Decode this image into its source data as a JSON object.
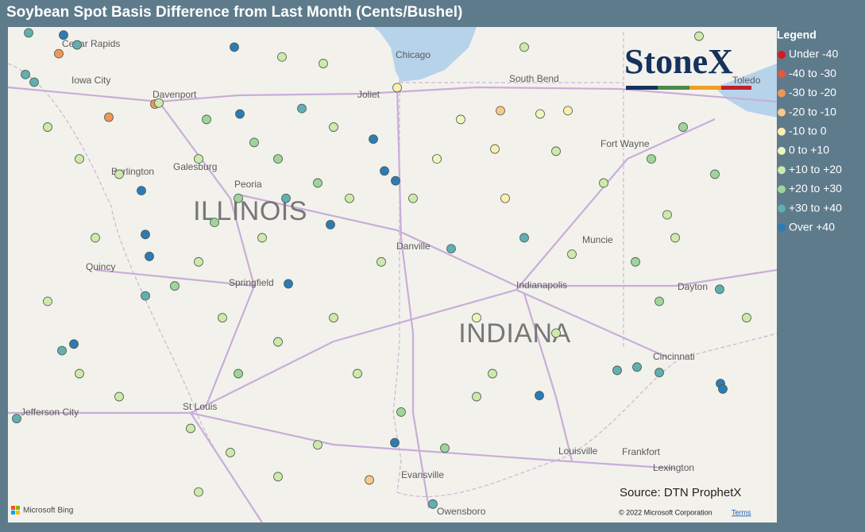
{
  "header": {
    "title": "Soybean Spot Basis Difference from Last Month (Cents/Bushel)"
  },
  "logo": "StoneX",
  "source": "Source: DTN ProphetX",
  "attribution": {
    "provider": "Microsoft Bing",
    "copyright": "© 2022 Microsoft Corporation",
    "terms": "Terms"
  },
  "states": [
    "ILLINOIS",
    "INDIANA"
  ],
  "cities": [
    "Cedar Rapids",
    "Iowa City",
    "Davenport",
    "Galesburg",
    "Burlington",
    "Peoria",
    "Quincy",
    "Springfield",
    "Chicago",
    "Joliet",
    "South Bend",
    "Fort Wayne",
    "Toledo",
    "Danville",
    "Muncie",
    "Indianapolis",
    "Dayton",
    "Cincinnati",
    "Louisville",
    "Frankfort",
    "Lexington",
    "Evansville",
    "Owensboro",
    "St Louis",
    "Jefferson City"
  ],
  "legend": {
    "title": "Legend",
    "items": [
      {
        "label": "Under -40",
        "color": "#d7191c"
      },
      {
        "label": "-40 to -30",
        "color": "#e8553a"
      },
      {
        "label": "-30 to -20",
        "color": "#f0965a"
      },
      {
        "label": "-20 to -10",
        "color": "#f7c98a"
      },
      {
        "label": "-10 to 0",
        "color": "#fbeeb0"
      },
      {
        "label": "0 to +10",
        "color": "#eef6c0"
      },
      {
        "label": "+10 to +20",
        "color": "#cfe9ad"
      },
      {
        "label": "+20 to +30",
        "color": "#9fd49c"
      },
      {
        "label": "+30 to +40",
        "color": "#62aeb0"
      },
      {
        "label": "Over +40",
        "color": "#2c7bb6"
      }
    ]
  },
  "points": [
    {
      "lon": -92.37,
      "lat": 42.09,
      "class": 8
    },
    {
      "lon": -91.93,
      "lat": 42.07,
      "class": 9
    },
    {
      "lon": -91.76,
      "lat": 41.98,
      "class": 8
    },
    {
      "lon": -91.99,
      "lat": 41.9,
      "class": 2
    },
    {
      "lon": -92.41,
      "lat": 41.71,
      "class": 8
    },
    {
      "lon": -92.3,
      "lat": 41.64,
      "class": 8
    },
    {
      "lon": -90.78,
      "lat": 41.44,
      "class": 2
    },
    {
      "lon": -91.36,
      "lat": 41.32,
      "class": 2
    },
    {
      "lon": -89.78,
      "lat": 41.96,
      "class": 9
    },
    {
      "lon": -89.18,
      "lat": 41.87,
      "class": 6
    },
    {
      "lon": -88.66,
      "lat": 41.81,
      "class": 6
    },
    {
      "lon": -87.73,
      "lat": 41.59,
      "class": 4
    },
    {
      "lon": -86.43,
      "lat": 41.38,
      "class": 3
    },
    {
      "lon": -85.93,
      "lat": 41.35,
      "class": 5
    },
    {
      "lon": -85.58,
      "lat": 41.38,
      "class": 4
    },
    {
      "lon": -86.5,
      "lat": 41.03,
      "class": 4
    },
    {
      "lon": -86.37,
      "lat": 40.58,
      "class": 4
    },
    {
      "lon": -88.93,
      "lat": 41.4,
      "class": 8
    },
    {
      "lon": -89.71,
      "lat": 41.35,
      "class": 9
    },
    {
      "lon": -88.03,
      "lat": 41.12,
      "class": 9
    },
    {
      "lon": -87.89,
      "lat": 40.83,
      "class": 9
    },
    {
      "lon": -87.75,
      "lat": 40.74,
      "class": 9
    },
    {
      "lon": -88.57,
      "lat": 40.34,
      "class": 9
    },
    {
      "lon": -90.95,
      "lat": 40.65,
      "class": 9
    },
    {
      "lon": -90.9,
      "lat": 40.25,
      "class": 9
    },
    {
      "lon": -90.85,
      "lat": 40.05,
      "class": 9
    },
    {
      "lon": -89.1,
      "lat": 39.8,
      "class": 9
    },
    {
      "lon": -90.9,
      "lat": 39.69,
      "class": 8
    },
    {
      "lon": -86.13,
      "lat": 40.22,
      "class": 8
    },
    {
      "lon": -87.05,
      "lat": 40.12,
      "class": 8
    },
    {
      "lon": -91.95,
      "lat": 39.19,
      "class": 8
    },
    {
      "lon": -91.8,
      "lat": 39.25,
      "class": 9
    },
    {
      "lon": -85.94,
      "lat": 38.78,
      "class": 9
    },
    {
      "lon": -87.76,
      "lat": 38.35,
      "class": 9
    },
    {
      "lon": -83.66,
      "lat": 38.89,
      "class": 9
    },
    {
      "lon": -83.63,
      "lat": 38.84,
      "class": 9
    },
    {
      "lon": -83.67,
      "lat": 39.75,
      "class": 8
    },
    {
      "lon": -84.96,
      "lat": 39.01,
      "class": 8
    },
    {
      "lon": -84.43,
      "lat": 38.99,
      "class": 8
    },
    {
      "lon": -84.71,
      "lat": 39.04,
      "class": 8
    },
    {
      "lon": -92.52,
      "lat": 38.57,
      "class": 8
    },
    {
      "lon": -88.08,
      "lat": 38.01,
      "class": 3
    },
    {
      "lon": -87.28,
      "lat": 37.79,
      "class": 8
    },
    {
      "lon": -87.68,
      "lat": 38.63,
      "class": 7
    },
    {
      "lon": -87.13,
      "lat": 38.3,
      "class": 7
    },
    {
      "lon": -92.13,
      "lat": 41.23,
      "class": 6
    },
    {
      "lon": -91.73,
      "lat": 40.94,
      "class": 6
    },
    {
      "lon": -91.23,
      "lat": 40.8,
      "class": 6
    },
    {
      "lon": -90.23,
      "lat": 40.94,
      "class": 6
    },
    {
      "lon": -89.73,
      "lat": 40.58,
      "class": 7
    },
    {
      "lon": -89.23,
      "lat": 40.94,
      "class": 7
    },
    {
      "lon": -88.73,
      "lat": 40.72,
      "class": 7
    },
    {
      "lon": -88.33,
      "lat": 40.58,
      "class": 6
    },
    {
      "lon": -89.43,
      "lat": 40.22,
      "class": 6
    },
    {
      "lon": -90.23,
      "lat": 40.0,
      "class": 6
    },
    {
      "lon": -90.53,
      "lat": 39.78,
      "class": 7
    },
    {
      "lon": -89.93,
      "lat": 39.49,
      "class": 6
    },
    {
      "lon": -89.23,
      "lat": 39.27,
      "class": 6
    },
    {
      "lon": -88.53,
      "lat": 39.49,
      "class": 6
    },
    {
      "lon": -88.23,
      "lat": 38.98,
      "class": 6
    },
    {
      "lon": -89.73,
      "lat": 38.98,
      "class": 7
    },
    {
      "lon": -90.33,
      "lat": 38.48,
      "class": 6
    },
    {
      "lon": -89.83,
      "lat": 38.26,
      "class": 6
    },
    {
      "lon": -89.23,
      "lat": 38.04,
      "class": 6
    },
    {
      "lon": -88.73,
      "lat": 38.33,
      "class": 6
    },
    {
      "lon": -91.23,
      "lat": 38.77,
      "class": 6
    },
    {
      "lon": -91.53,
      "lat": 40.22,
      "class": 6
    },
    {
      "lon": -92.13,
      "lat": 39.64,
      "class": 6
    },
    {
      "lon": -87.23,
      "lat": 40.94,
      "class": 5
    },
    {
      "lon": -86.93,
      "lat": 41.3,
      "class": 5
    },
    {
      "lon": -85.73,
      "lat": 41.01,
      "class": 6
    },
    {
      "lon": -85.13,
      "lat": 40.72,
      "class": 6
    },
    {
      "lon": -84.53,
      "lat": 40.94,
      "class": 7
    },
    {
      "lon": -84.13,
      "lat": 41.23,
      "class": 7
    },
    {
      "lon": -83.73,
      "lat": 40.8,
      "class": 7
    },
    {
      "lon": -84.23,
      "lat": 40.22,
      "class": 6
    },
    {
      "lon": -84.73,
      "lat": 40.0,
      "class": 7
    },
    {
      "lon": -84.43,
      "lat": 39.64,
      "class": 7
    },
    {
      "lon": -83.33,
      "lat": 39.49,
      "class": 6
    },
    {
      "lon": -85.73,
      "lat": 39.35,
      "class": 6
    },
    {
      "lon": -86.73,
      "lat": 39.49,
      "class": 5
    },
    {
      "lon": -87.53,
      "lat": 40.58,
      "class": 6
    },
    {
      "lon": -87.93,
      "lat": 40.0,
      "class": 6
    },
    {
      "lon": -86.73,
      "lat": 38.77,
      "class": 6
    },
    {
      "lon": -86.13,
      "lat": 41.96,
      "class": 6
    },
    {
      "lon": -83.93,
      "lat": 42.06,
      "class": 6
    },
    {
      "lon": -84.33,
      "lat": 40.43,
      "class": 6
    },
    {
      "lon": -85.53,
      "lat": 40.07,
      "class": 6
    },
    {
      "lon": -86.53,
      "lat": 38.98,
      "class": 6
    },
    {
      "lon": -90.23,
      "lat": 37.9,
      "class": 6
    },
    {
      "lon": -91.73,
      "lat": 38.98,
      "class": 6
    },
    {
      "lon": -90.73,
      "lat": 41.45,
      "class": 6
    },
    {
      "lon": -90.13,
      "lat": 41.3,
      "class": 7
    },
    {
      "lon": -89.53,
      "lat": 41.09,
      "class": 7
    },
    {
      "lon": -88.53,
      "lat": 41.23,
      "class": 6
    },
    {
      "lon": -89.13,
      "lat": 40.58,
      "class": 8
    },
    {
      "lon": -90.03,
      "lat": 40.36,
      "class": 7
    }
  ]
}
